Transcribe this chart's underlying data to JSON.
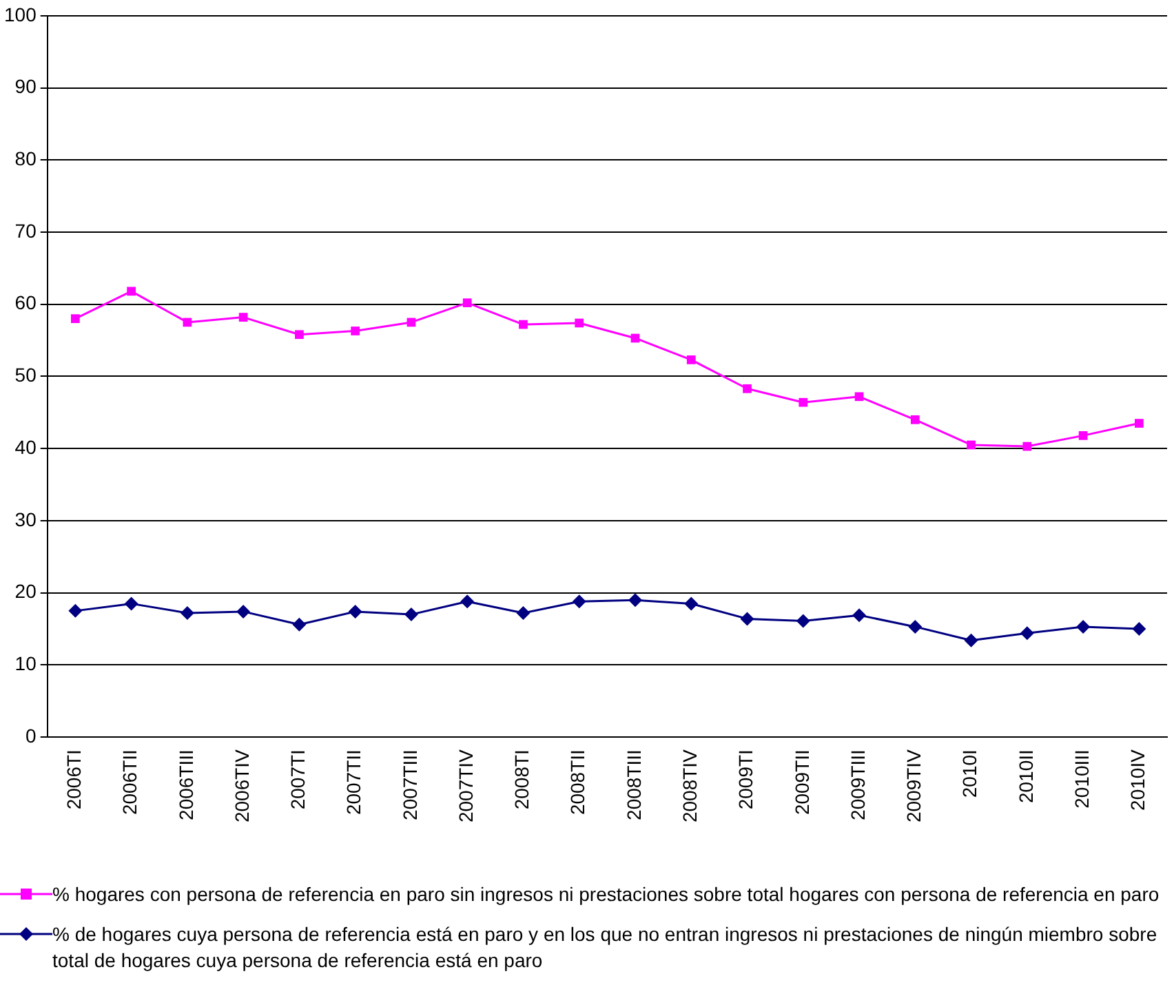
{
  "chart_data": {
    "type": "line",
    "categories": [
      "2006TI",
      "2006TII",
      "2006TIII",
      "2006TIV",
      "2007TI",
      "2007TII",
      "2007TIII",
      "2007TIV",
      "2008TI",
      "2008TII",
      "2008TIII",
      "2008TIV",
      "2009TI",
      "2009TII",
      "2009TIII",
      "2009TIV",
      "2010I",
      "2010II",
      "2010III",
      "2010IV"
    ],
    "series": [
      {
        "name": "% hogares con persona de referencia en paro sin ingresos ni prestaciones sobre total hogares con persona de referencia en paro",
        "color": "#ff00ff",
        "marker": "square",
        "values": [
          58,
          61.8,
          57.5,
          58.2,
          55.8,
          56.3,
          57.5,
          60.2,
          57.2,
          57.4,
          55.3,
          52.3,
          48.3,
          46.4,
          47.2,
          44,
          40.5,
          40.3,
          41.8,
          43.5
        ]
      },
      {
        "name": "% de hogares cuya persona de referencia está en paro y en los que no entran ingresos ni prestaciones de ningún miembro sobre total de hogares cuya persona de referencia está en paro",
        "color": "#000080",
        "marker": "diamond",
        "values": [
          17.5,
          18.5,
          17.2,
          17.4,
          15.6,
          17.4,
          17,
          18.8,
          17.2,
          18.8,
          19,
          18.5,
          16.4,
          16.1,
          16.9,
          15.3,
          13.4,
          14.4,
          15.3,
          15
        ]
      }
    ],
    "ylim": [
      0,
      100
    ],
    "yticks": [
      0,
      10,
      20,
      30,
      40,
      50,
      60,
      70,
      80,
      90,
      100
    ],
    "grid": "y",
    "legend": "bottom"
  }
}
